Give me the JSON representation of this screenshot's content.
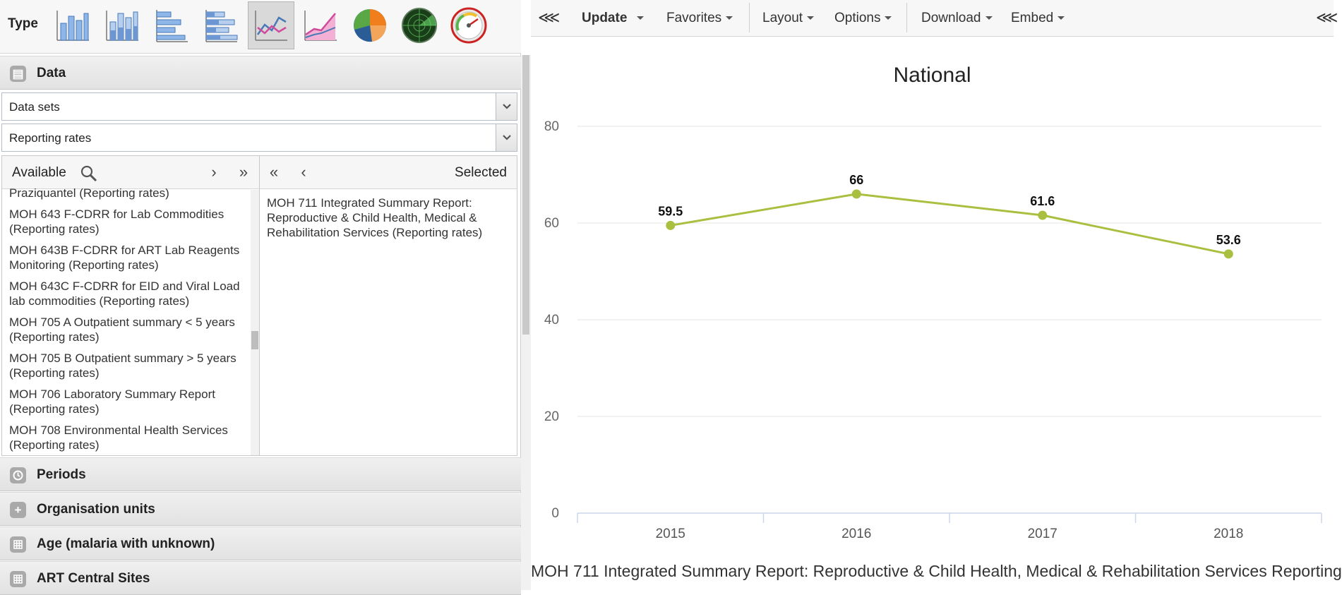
{
  "type_bar": {
    "label": "Type",
    "icons": [
      "column-chart-icon",
      "stacked-column-chart-icon",
      "bar-chart-icon",
      "stacked-bar-chart-icon",
      "line-chart-icon",
      "area-chart-icon",
      "pie-chart-icon",
      "radar-chart-icon",
      "gauge-chart-icon"
    ],
    "selected": "line-chart-icon"
  },
  "data_section": {
    "title": "Data",
    "type_select": "Data sets",
    "detail_select": "Reporting rates",
    "available_label": "Available",
    "selected_label": "Selected",
    "available_items": [
      "Praziquantel (Reporting rates)",
      "MOH 643 F-CDRR for Lab Commodities (Reporting rates)",
      "MOH 643B F-CDRR for ART Lab Reagents Monitoring (Reporting rates)",
      "MOH 643C F-CDRR for EID and Viral Load lab commodities (Reporting rates)",
      "MOH 705 A Outpatient summary < 5 years (Reporting rates)",
      "MOH 705 B Outpatient summary > 5 years (Reporting rates)",
      "MOH 706 Laboratory Summary Report (Reporting rates)",
      "MOH 708 Environmental Health Services (Reporting rates)"
    ],
    "selected_items": [
      "MOH 711 Integrated Summary Report: Reproductive & Child Health, Medical & Rehabilitation Services (Reporting rates)"
    ]
  },
  "sections": [
    {
      "title": "Periods",
      "icon": "clock-icon"
    },
    {
      "title": "Organisation units",
      "icon": "plus-icon"
    },
    {
      "title": "Age (malaria with unknown)",
      "icon": "grid-icon"
    },
    {
      "title": "ART Central Sites",
      "icon": "grid-icon"
    }
  ],
  "toolbar": {
    "update": "Update",
    "favorites": "Favorites",
    "layout": "Layout",
    "options": "Options",
    "download": "Download",
    "embed": "Embed"
  },
  "colors": {
    "series": "#a9bf3f",
    "grid": "#e6e6e6",
    "axis": "#ccd6eb"
  },
  "chart_data": {
    "type": "line",
    "title": "National",
    "subtitle": "MOH 711 Integrated Summary Report: Reproductive & Child Health, Medical & Rehabilitation Services Reporting",
    "categories": [
      "2015",
      "2016",
      "2017",
      "2018"
    ],
    "series": [
      {
        "values": [
          59.5,
          66,
          61.6,
          53.6
        ]
      }
    ],
    "ylim": [
      0,
      80
    ],
    "yticks": [
      0,
      20,
      40,
      60,
      80
    ],
    "grid": true,
    "data_labels": true
  }
}
